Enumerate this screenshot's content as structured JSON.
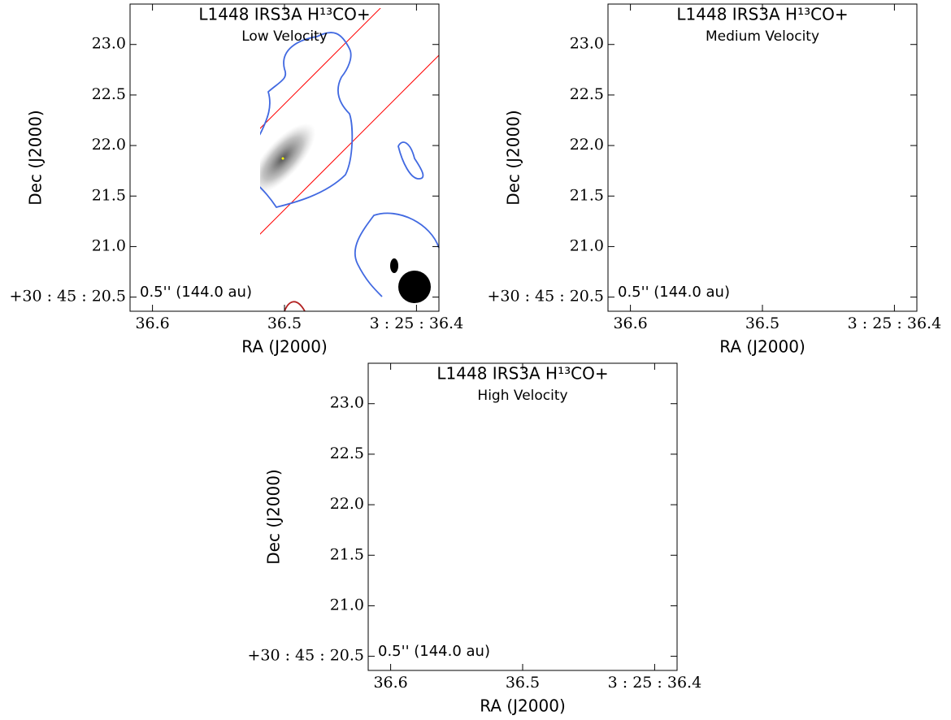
{
  "chart_data": [
    {
      "type": "contour",
      "title": "L1448 IRS3A H¹³CO+",
      "subtitle": "Low Velocity",
      "xlabel": "RA (J2000)",
      "ylabel": "Dec (J2000)",
      "scalebar_label": "0.5'' (144.0 au)",
      "xlim": [
        36.617,
        36.383
      ],
      "ylim": [
        20.36,
        23.4
      ],
      "xticks": [
        {
          "value": 36.6,
          "label": "36.6"
        },
        {
          "value": 36.5,
          "label": "36.5"
        },
        {
          "value": 36.4,
          "label": "3 : 25 : 36.4"
        }
      ],
      "yticks": [
        {
          "value": 20.5,
          "label": "+30 : 45 : 20.5"
        },
        {
          "value": 21.0,
          "label": "21.0"
        },
        {
          "value": 21.5,
          "label": "21.5"
        },
        {
          "value": 22.0,
          "label": "22.0"
        },
        {
          "value": 22.5,
          "label": "22.5"
        },
        {
          "value": 23.0,
          "label": "23.0"
        }
      ]
    },
    {
      "type": "contour",
      "title": "L1448 IRS3A H¹³CO+",
      "subtitle": "Medium Velocity",
      "xlabel": "RA (J2000)",
      "ylabel": "Dec (J2000)",
      "scalebar_label": "0.5'' (144.0 au)",
      "xlim": [
        36.617,
        36.383
      ],
      "ylim": [
        20.36,
        23.4
      ],
      "xticks": [
        {
          "value": 36.6,
          "label": "36.6"
        },
        {
          "value": 36.5,
          "label": "36.5"
        },
        {
          "value": 36.4,
          "label": "3 : 25 : 36.4"
        }
      ],
      "yticks": [
        {
          "value": 20.5,
          "label": "+30 : 45 : 20.5"
        },
        {
          "value": 21.0,
          "label": "21.0"
        },
        {
          "value": 21.5,
          "label": "21.5"
        },
        {
          "value": 22.0,
          "label": "22.0"
        },
        {
          "value": 22.5,
          "label": "22.5"
        },
        {
          "value": 23.0,
          "label": "23.0"
        }
      ]
    },
    {
      "type": "contour",
      "title": "L1448 IRS3A H¹³CO+",
      "subtitle": "High Velocity",
      "xlabel": "RA (J2000)",
      "ylabel": "Dec (J2000)",
      "scalebar_label": "0.5'' (144.0 au)",
      "xlim": [
        36.617,
        36.383
      ],
      "ylim": [
        20.36,
        23.4
      ],
      "xticks": [
        {
          "value": 36.6,
          "label": "36.6"
        },
        {
          "value": 36.5,
          "label": "36.5"
        },
        {
          "value": 36.4,
          "label": "3 : 25 : 36.4"
        }
      ],
      "yticks": [
        {
          "value": 20.5,
          "label": "+30 : 45 : 20.5"
        },
        {
          "value": 21.0,
          "label": "21.0"
        },
        {
          "value": 21.5,
          "label": "21.5"
        },
        {
          "value": 22.0,
          "label": "22.0"
        },
        {
          "value": 22.5,
          "label": "22.5"
        },
        {
          "value": 23.0,
          "label": "23.0"
        }
      ]
    }
  ]
}
